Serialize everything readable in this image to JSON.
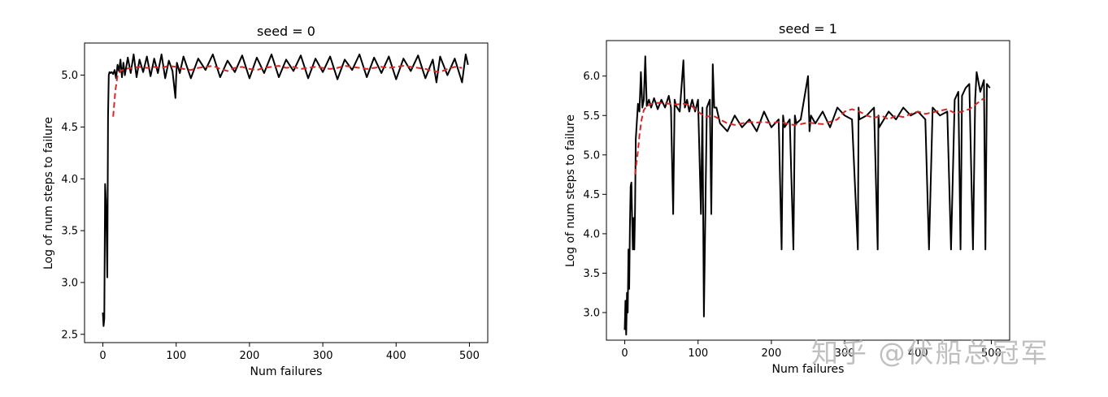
{
  "chart_data": [
    {
      "type": "line",
      "title": "seed = 0",
      "xlabel": "Num failures",
      "ylabel": "Log of num steps to failure",
      "xlim": [
        -25,
        525
      ],
      "ylim": [
        2.42,
        5.31
      ],
      "xticks": [
        0,
        100,
        200,
        300,
        400,
        500
      ],
      "xtick_labels": [
        "0",
        "100",
        "200",
        "300",
        "400",
        "500"
      ],
      "yticks": [
        2.5,
        3.0,
        3.5,
        4.0,
        4.5,
        5.0
      ],
      "ytick_labels": [
        "2.5",
        "3.0",
        "3.5",
        "4.0",
        "4.5",
        "5.0"
      ],
      "grid": false,
      "series": [
        {
          "style": "solid",
          "color": "#000000",
          "x": [
            0,
            1,
            2,
            3,
            4,
            5,
            6,
            7,
            8,
            9,
            10,
            12,
            14,
            16,
            18,
            20,
            22,
            24,
            26,
            28,
            30,
            34,
            38,
            42,
            46,
            50,
            55,
            60,
            65,
            70,
            75,
            80,
            85,
            90,
            95,
            99,
            100,
            101,
            105,
            110,
            120,
            130,
            140,
            150,
            160,
            170,
            180,
            190,
            200,
            210,
            220,
            230,
            240,
            250,
            260,
            270,
            280,
            290,
            300,
            310,
            320,
            330,
            340,
            350,
            360,
            370,
            380,
            390,
            400,
            410,
            420,
            430,
            440,
            450,
            455,
            460,
            470,
            480,
            490,
            495,
            498
          ],
          "y": [
            2.71,
            2.58,
            2.65,
            3.95,
            3.8,
            3.5,
            3.05,
            4.6,
            5.0,
            5.03,
            5.02,
            5.03,
            5.01,
            5.05,
            4.97,
            5.1,
            5.04,
            5.15,
            4.98,
            5.12,
            5.0,
            5.17,
            5.02,
            5.2,
            4.98,
            5.15,
            5.03,
            5.18,
            4.99,
            5.16,
            5.02,
            5.2,
            4.97,
            5.14,
            5.04,
            4.78,
            4.98,
            5.12,
            5.02,
            5.18,
            4.97,
            5.16,
            5.05,
            5.2,
            4.98,
            5.14,
            5.03,
            5.19,
            4.97,
            5.17,
            5.02,
            5.2,
            4.98,
            5.15,
            5.04,
            5.19,
            4.97,
            5.16,
            5.03,
            5.18,
            4.96,
            5.15,
            5.05,
            5.2,
            4.98,
            5.17,
            5.02,
            5.18,
            4.96,
            5.16,
            5.04,
            5.19,
            4.97,
            5.15,
            4.93,
            5.18,
            5.0,
            5.16,
            4.93,
            5.2,
            5.1
          ]
        },
        {
          "style": "dashed",
          "color": "#d62728",
          "x": [
            14,
            17,
            20,
            24,
            30,
            40,
            50,
            60,
            70,
            80,
            90,
            100,
            110,
            120,
            130,
            140,
            150,
            160,
            170,
            180,
            190,
            200,
            210,
            220,
            230,
            240,
            250,
            260,
            270,
            280,
            290,
            300,
            310,
            320,
            330,
            340,
            350,
            360,
            370,
            380,
            390,
            400,
            410,
            420,
            430,
            440,
            450,
            460,
            470,
            480,
            490
          ],
          "y": [
            4.6,
            4.85,
            5.0,
            5.04,
            5.06,
            5.07,
            5.08,
            5.07,
            5.08,
            5.07,
            5.09,
            5.08,
            5.06,
            5.05,
            5.07,
            5.08,
            5.09,
            5.06,
            5.04,
            5.07,
            5.08,
            5.06,
            5.05,
            5.07,
            5.08,
            5.09,
            5.07,
            5.08,
            5.06,
            5.07,
            5.08,
            5.07,
            5.06,
            5.07,
            5.09,
            5.08,
            5.07,
            5.06,
            5.07,
            5.08,
            5.07,
            5.08,
            5.09,
            5.08,
            5.07,
            5.06,
            5.04,
            5.03,
            5.06,
            5.08,
            5.07
          ]
        }
      ]
    },
    {
      "type": "line",
      "title": "seed = 1",
      "xlabel": "Num failures",
      "ylabel": "Log of num steps to failure",
      "xlim": [
        -25,
        525
      ],
      "ylim": [
        2.65,
        6.45
      ],
      "xticks": [
        0,
        100,
        200,
        300,
        400,
        500
      ],
      "xtick_labels": [
        "0",
        "100",
        "200",
        "300",
        "400",
        "500"
      ],
      "yticks": [
        3.0,
        3.5,
        4.0,
        4.5,
        5.0,
        5.5,
        6.0
      ],
      "ytick_labels": [
        "3.0",
        "3.5",
        "4.0",
        "4.5",
        "5.0",
        "5.5",
        "6.0"
      ],
      "grid": false,
      "series": [
        {
          "style": "solid",
          "color": "#000000",
          "x": [
            0,
            1,
            2,
            3,
            4,
            5,
            6,
            7,
            8,
            9,
            10,
            11,
            12,
            13,
            14,
            15,
            18,
            20,
            22,
            24,
            26,
            28,
            30,
            33,
            36,
            40,
            45,
            50,
            55,
            60,
            63,
            66,
            68,
            70,
            75,
            80,
            82,
            85,
            88,
            92,
            96,
            100,
            104,
            106,
            108,
            112,
            116,
            118,
            120,
            122,
            125,
            130,
            140,
            150,
            160,
            170,
            180,
            190,
            200,
            210,
            214,
            216,
            218,
            225,
            230,
            232,
            234,
            240,
            250,
            252,
            254,
            260,
            270,
            280,
            290,
            300,
            310,
            318,
            319,
            320,
            330,
            340,
            345,
            346,
            347,
            360,
            370,
            380,
            390,
            400,
            410,
            415,
            420,
            430,
            440,
            445,
            450,
            455,
            458,
            460,
            465,
            470,
            475,
            478,
            480,
            485,
            490,
            492,
            494,
            498
          ],
          "y": [
            2.78,
            3.15,
            2.72,
            3.25,
            3.0,
            3.8,
            3.3,
            4.1,
            4.6,
            4.65,
            4.2,
            3.8,
            4.2,
            3.8,
            4.3,
            5.2,
            5.65,
            5.55,
            6.05,
            5.6,
            5.7,
            6.25,
            5.62,
            5.7,
            5.6,
            5.72,
            5.58,
            5.7,
            5.6,
            5.75,
            5.6,
            4.25,
            5.7,
            5.62,
            5.55,
            6.2,
            5.6,
            5.7,
            5.55,
            5.7,
            5.55,
            5.7,
            4.25,
            5.6,
            2.95,
            5.6,
            5.7,
            4.25,
            6.15,
            5.6,
            5.6,
            5.4,
            5.3,
            5.5,
            5.35,
            5.45,
            5.3,
            5.55,
            5.35,
            5.45,
            3.8,
            5.5,
            5.35,
            5.45,
            3.8,
            5.5,
            5.4,
            5.45,
            6.0,
            5.3,
            5.5,
            5.4,
            5.55,
            5.35,
            5.6,
            5.5,
            5.45,
            3.8,
            5.6,
            5.45,
            5.5,
            5.6,
            3.8,
            5.5,
            5.35,
            5.55,
            5.45,
            5.6,
            5.5,
            5.55,
            5.45,
            3.8,
            5.6,
            5.5,
            5.55,
            3.8,
            5.7,
            5.8,
            3.8,
            5.75,
            5.85,
            5.9,
            3.8,
            5.7,
            6.05,
            5.8,
            5.95,
            3.8,
            5.9,
            5.85
          ]
        },
        {
          "style": "dashed",
          "color": "#d62728",
          "x": [
            14,
            16,
            18,
            20,
            23,
            26,
            30,
            40,
            50,
            60,
            70,
            80,
            90,
            100,
            110,
            120,
            130,
            140,
            150,
            160,
            170,
            180,
            190,
            200,
            210,
            220,
            230,
            240,
            250,
            260,
            270,
            280,
            290,
            300,
            310,
            320,
            330,
            340,
            350,
            360,
            370,
            380,
            390,
            400,
            410,
            420,
            430,
            440,
            450,
            460,
            470,
            480,
            490
          ],
          "y": [
            4.75,
            4.9,
            5.05,
            5.25,
            5.45,
            5.57,
            5.62,
            5.66,
            5.66,
            5.65,
            5.64,
            5.65,
            5.63,
            5.55,
            5.48,
            5.5,
            5.45,
            5.4,
            5.38,
            5.4,
            5.42,
            5.41,
            5.42,
            5.4,
            5.42,
            5.4,
            5.38,
            5.39,
            5.41,
            5.4,
            5.39,
            5.42,
            5.45,
            5.55,
            5.58,
            5.55,
            5.5,
            5.47,
            5.5,
            5.45,
            5.5,
            5.48,
            5.52,
            5.55,
            5.52,
            5.54,
            5.56,
            5.58,
            5.53,
            5.55,
            5.58,
            5.65,
            5.72
          ]
        }
      ]
    }
  ],
  "watermark": {
    "text": "知乎 @伏船总冠军"
  }
}
